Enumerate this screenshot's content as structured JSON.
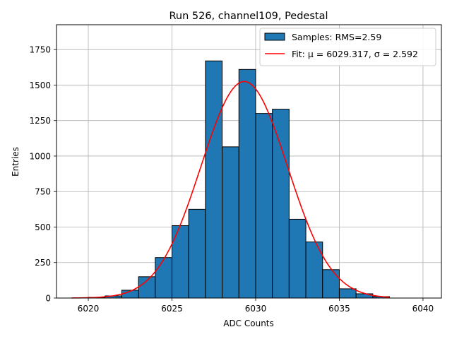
{
  "chart_data": {
    "type": "bar",
    "title": "Run 526, channel109, Pedestal",
    "xlabel": "ADC Counts",
    "ylabel": "Entries",
    "xlim": [
      6018.1,
      6041.1
    ],
    "ylim": [
      0,
      1925
    ],
    "grid": true,
    "legend_position": "top-right",
    "x_ticks": [
      6020,
      6025,
      6030,
      6035,
      6040
    ],
    "y_ticks": [
      0,
      250,
      500,
      750,
      1000,
      1250,
      1500,
      1750
    ],
    "histogram": {
      "name": "Samples: RMS=2.59",
      "color": "#1f77b4",
      "edge_color": "#000000",
      "bin_edges": [
        6020,
        6021,
        6022,
        6023,
        6024,
        6025,
        6026,
        6027,
        6028,
        6029,
        6030,
        6031,
        6032,
        6033,
        6034,
        6035,
        6036,
        6037,
        6038
      ],
      "counts": [
        5,
        15,
        55,
        150,
        285,
        510,
        625,
        1670,
        1065,
        1610,
        1300,
        1330,
        555,
        395,
        200,
        65,
        30,
        10
      ]
    },
    "fit": {
      "name": "Fit: μ = 6029.317, σ = 2.592",
      "color": "#ff0000",
      "mu": 6029.317,
      "sigma": 2.592,
      "amplitude": 1525,
      "x_range": [
        6019,
        6038
      ]
    }
  }
}
